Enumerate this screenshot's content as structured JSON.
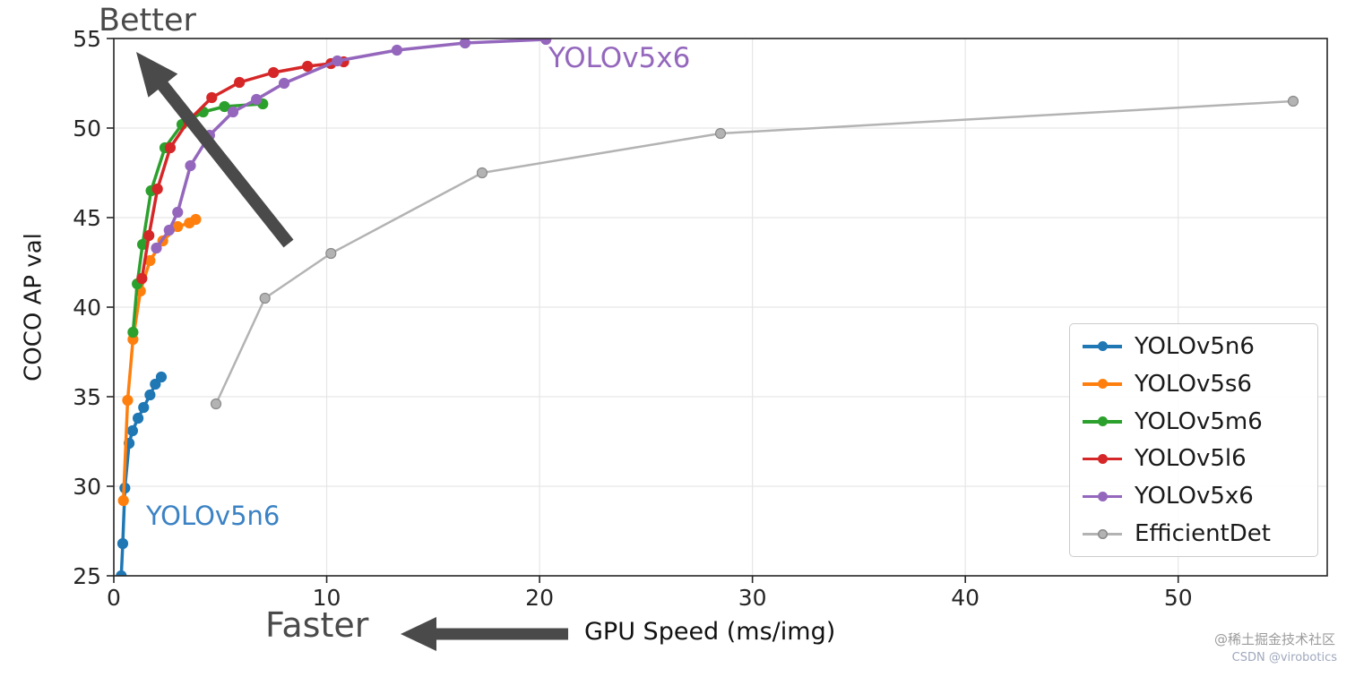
{
  "annotations": {
    "better": "Better",
    "faster": "Faster",
    "x6_curve_label": "YOLOv5x6",
    "x6_label_color": "#9467bd",
    "n6_curve_label": "YOLOv5n6",
    "n6_label_color": "#3b82c4",
    "arrow_color": "#4a4a4a"
  },
  "watermark": {
    "line1": "@稀土掘金技术社区",
    "line2": "CSDN @virobotics"
  },
  "chart_data": {
    "type": "line",
    "title": "",
    "xlabel": "GPU Speed (ms/img)",
    "ylabel": "COCO AP val",
    "xlim": [
      0,
      57
    ],
    "ylim": [
      25,
      55
    ],
    "xticks": [
      0,
      10,
      20,
      30,
      40,
      50
    ],
    "yticks": [
      25,
      30,
      35,
      40,
      45,
      50,
      55
    ],
    "grid": true,
    "legend_position": "right-bottom",
    "series": [
      {
        "name": "YOLOv5n6",
        "color": "#1f77b4",
        "lw": 3.5,
        "points": [
          [
            0.35,
            25.0
          ],
          [
            0.42,
            26.8
          ],
          [
            0.52,
            29.9
          ],
          [
            0.72,
            32.4
          ],
          [
            0.88,
            33.1
          ],
          [
            1.14,
            33.8
          ],
          [
            1.4,
            34.4
          ],
          [
            1.7,
            35.1
          ],
          [
            1.95,
            35.7
          ],
          [
            2.23,
            36.1
          ]
        ]
      },
      {
        "name": "YOLOv5s6",
        "color": "#ff7f0e",
        "lw": 3.5,
        "points": [
          [
            0.45,
            29.2
          ],
          [
            0.65,
            34.8
          ],
          [
            0.9,
            38.2
          ],
          [
            1.25,
            40.9
          ],
          [
            1.7,
            42.6
          ],
          [
            2.3,
            43.7
          ],
          [
            3.0,
            44.5
          ],
          [
            3.55,
            44.7
          ],
          [
            3.85,
            44.9
          ]
        ]
      },
      {
        "name": "YOLOv5m6",
        "color": "#2ca02c",
        "lw": 3.5,
        "points": [
          [
            0.9,
            38.6
          ],
          [
            1.1,
            41.3
          ],
          [
            1.35,
            43.5
          ],
          [
            1.75,
            46.5
          ],
          [
            2.4,
            48.9
          ],
          [
            3.2,
            50.2
          ],
          [
            4.2,
            50.9
          ],
          [
            5.2,
            51.2
          ],
          [
            7.0,
            51.35
          ]
        ]
      },
      {
        "name": "YOLOv5l6",
        "color": "#d62728",
        "lw": 3.5,
        "points": [
          [
            1.32,
            41.6
          ],
          [
            1.65,
            44.0
          ],
          [
            2.05,
            46.6
          ],
          [
            2.65,
            48.9
          ],
          [
            3.5,
            50.4
          ],
          [
            4.6,
            51.7
          ],
          [
            5.9,
            52.55
          ],
          [
            7.5,
            53.1
          ],
          [
            9.1,
            53.45
          ],
          [
            10.2,
            53.6
          ],
          [
            10.8,
            53.7
          ]
        ]
      },
      {
        "name": "YOLOv5x6",
        "color": "#9467bd",
        "lw": 3.5,
        "points": [
          [
            2.0,
            43.3
          ],
          [
            2.6,
            44.3
          ],
          [
            3.0,
            45.3
          ],
          [
            3.6,
            47.9
          ],
          [
            4.5,
            49.6
          ],
          [
            5.6,
            50.9
          ],
          [
            6.7,
            51.6
          ],
          [
            8.0,
            52.5
          ],
          [
            10.5,
            53.75
          ],
          [
            13.3,
            54.35
          ],
          [
            16.5,
            54.75
          ],
          [
            20.3,
            54.95
          ]
        ]
      },
      {
        "name": "EfficientDet",
        "color": "#b3b3b3",
        "edge": "#8a8a8a",
        "lw": 2.5,
        "points": [
          [
            4.8,
            34.6
          ],
          [
            7.1,
            40.5
          ],
          [
            10.2,
            43.0
          ],
          [
            17.3,
            47.5
          ],
          [
            28.5,
            49.7
          ],
          [
            55.4,
            51.5
          ]
        ]
      }
    ]
  }
}
